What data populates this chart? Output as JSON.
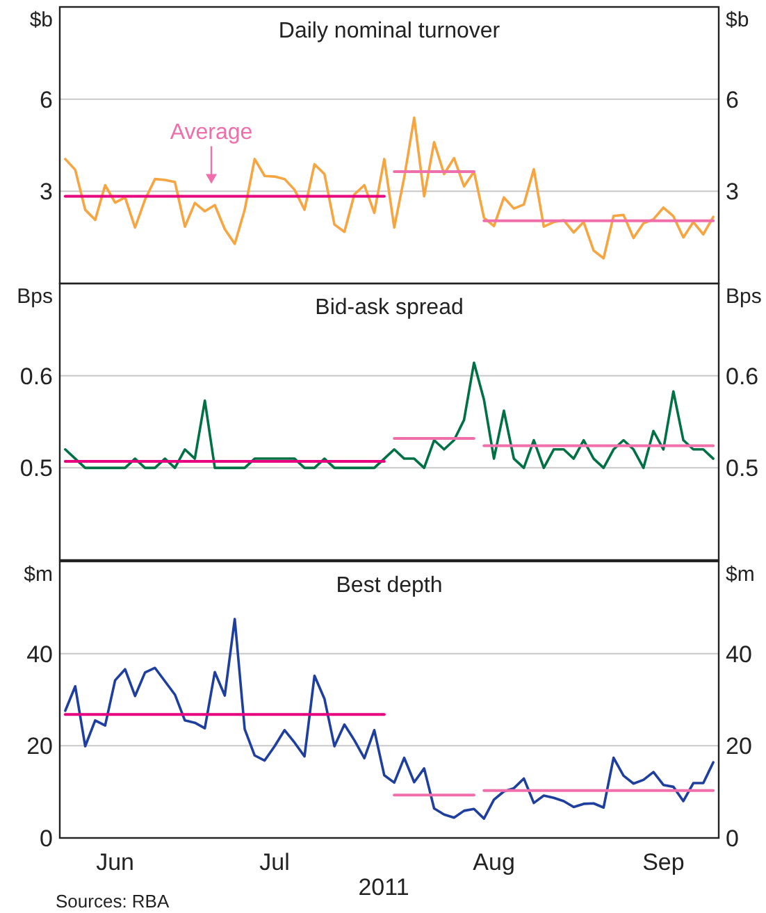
{
  "chart_data": [
    {
      "type": "line",
      "title": "Daily nominal turnover",
      "ylabel": "$b",
      "y2label": "$b",
      "categories": [
        null,
        null,
        null,
        null,
        null,
        null,
        null,
        null,
        null,
        null,
        null,
        null,
        null,
        null,
        null,
        null,
        null,
        null,
        null,
        null,
        null,
        null,
        null,
        null,
        null,
        null,
        null,
        null,
        null,
        null,
        null,
        null,
        null,
        null,
        null,
        null,
        null,
        null,
        null,
        null,
        null,
        null,
        null,
        null,
        null,
        null,
        null,
        null,
        null,
        null,
        null,
        null,
        null,
        null,
        null,
        null,
        null,
        null,
        null,
        null,
        null,
        null,
        null,
        null,
        null,
        null
      ],
      "ylim": [
        0,
        9
      ],
      "yticks": [
        3,
        6
      ],
      "y2lim": [
        0,
        9
      ],
      "y2ticks": [
        3,
        6
      ],
      "grid": "y",
      "tick_labels": "y",
      "series": [
        {
          "color": "#f7a540",
          "values": [
            4.05,
            3.7,
            2.4,
            2.07,
            3.2,
            2.63,
            2.8,
            1.82,
            2.73,
            3.4,
            3.37,
            3.3,
            1.85,
            2.62,
            2.35,
            2.55,
            1.77,
            1.29,
            2.4,
            4.05,
            3.5,
            3.48,
            3.4,
            3.05,
            2.4,
            3.88,
            3.56,
            1.92,
            1.68,
            2.9,
            3.2,
            2.3,
            4.05,
            1.82,
            3.45,
            5.4,
            2.84,
            4.6,
            3.56,
            4.08,
            3.16,
            3.64,
            2.14,
            1.87,
            2.8,
            2.44,
            2.57,
            3.72,
            1.85,
            2.0,
            2.06,
            1.66,
            2.0,
            1.07,
            0.82,
            2.2,
            2.23,
            1.48,
            1.96,
            2.09,
            2.47,
            2.19,
            1.5,
            2.0,
            1.6,
            2.17
          ]
        },
        {
          "type": "line",
          "color": "#e6007e",
          "values": [
            2.84,
            2.84,
            2.84,
            2.84,
            2.84,
            2.84,
            2.84,
            2.84,
            2.84,
            2.84,
            2.84,
            2.84,
            2.84,
            2.84,
            2.84,
            2.84,
            2.84,
            2.84,
            2.84,
            2.84,
            2.84,
            2.84,
            2.84,
            2.84,
            2.84,
            2.84,
            2.84,
            2.84,
            2.84,
            2.84,
            2.84,
            2.84,
            2.84,
            null,
            null,
            null,
            null,
            null,
            null,
            null,
            null,
            null,
            null,
            null,
            null,
            null,
            null,
            null,
            null,
            null,
            null,
            null,
            null,
            null,
            null,
            null,
            null,
            null,
            null,
            null,
            null,
            null,
            null,
            null,
            null,
            null
          ]
        },
        {
          "type": "line",
          "color": "#f06eaa",
          "values": [
            null,
            null,
            null,
            null,
            null,
            null,
            null,
            null,
            null,
            null,
            null,
            null,
            null,
            null,
            null,
            null,
            null,
            null,
            null,
            null,
            null,
            null,
            null,
            null,
            null,
            null,
            null,
            null,
            null,
            null,
            null,
            null,
            null,
            3.64,
            3.64,
            3.64,
            3.64,
            3.64,
            3.64,
            3.64,
            3.64,
            3.64,
            null,
            null,
            null,
            null,
            null,
            null,
            null,
            null,
            null,
            null,
            null,
            null,
            null,
            null,
            null,
            null,
            null,
            null,
            null,
            null,
            null,
            null,
            null,
            null
          ]
        },
        {
          "type": "line",
          "color": "#f06eaa",
          "values": [
            null,
            null,
            null,
            null,
            null,
            null,
            null,
            null,
            null,
            null,
            null,
            null,
            null,
            null,
            null,
            null,
            null,
            null,
            null,
            null,
            null,
            null,
            null,
            null,
            null,
            null,
            null,
            null,
            null,
            null,
            null,
            null,
            null,
            null,
            null,
            null,
            null,
            null,
            null,
            null,
            null,
            null,
            2.04,
            2.04,
            2.04,
            2.04,
            2.04,
            2.04,
            2.04,
            2.04,
            2.04,
            2.04,
            2.04,
            2.04,
            2.04,
            2.04,
            2.04,
            2.04,
            2.04,
            2.04,
            2.04,
            2.04,
            2.04,
            2.04,
            2.04,
            2.04
          ]
        }
      ],
      "annotations": [
        {
          "text": "Average",
          "y": 2.84
        }
      ]
    },
    {
      "type": "line",
      "title": "Bid-ask spread",
      "ylabel": "Bps",
      "y2label": "Bps",
      "categories": [
        null,
        null,
        null,
        null,
        null,
        null,
        null,
        null,
        null,
        null,
        null,
        null,
        null,
        null,
        null,
        null,
        null,
        null,
        null,
        null,
        null,
        null,
        null,
        null,
        null,
        null,
        null,
        null,
        null,
        null,
        null,
        null,
        null,
        null,
        null,
        null,
        null,
        null,
        null,
        null,
        null,
        null,
        null,
        null,
        null,
        null,
        null,
        null,
        null,
        null,
        null,
        null,
        null,
        null,
        null,
        null,
        null,
        null,
        null,
        null,
        null,
        null,
        null,
        null,
        null,
        null
      ],
      "ylim": [
        0.4,
        0.7
      ],
      "yticks": [
        0.5,
        0.6
      ],
      "y2lim": [
        0.4,
        0.7
      ],
      "y2ticks": [
        0.5,
        0.6
      ],
      "grid": "y",
      "tick_labels": "y",
      "series": [
        {
          "color": "#007045",
          "values": [
            0.52,
            0.51,
            0.5,
            0.5,
            0.5,
            0.5,
            0.5,
            0.51,
            0.5,
            0.5,
            0.51,
            0.5,
            0.52,
            0.51,
            0.573,
            0.5,
            0.5,
            0.5,
            0.5,
            0.51,
            0.51,
            0.51,
            0.51,
            0.51,
            0.5,
            0.5,
            0.51,
            0.5,
            0.5,
            0.5,
            0.5,
            0.5,
            0.51,
            0.52,
            0.51,
            0.51,
            0.5,
            0.53,
            0.52,
            0.53,
            0.552,
            0.614,
            0.574,
            0.51,
            0.562,
            0.51,
            0.5,
            0.53,
            0.5,
            0.52,
            0.52,
            0.51,
            0.53,
            0.51,
            0.5,
            0.52,
            0.53,
            0.52,
            0.5,
            0.54,
            0.52,
            0.583,
            0.53,
            0.52,
            0.52,
            0.51
          ]
        },
        {
          "type": "line",
          "color": "#e6007e",
          "values": [
            0.507,
            0.507,
            0.507,
            0.507,
            0.507,
            0.507,
            0.507,
            0.507,
            0.507,
            0.507,
            0.507,
            0.507,
            0.507,
            0.507,
            0.507,
            0.507,
            0.507,
            0.507,
            0.507,
            0.507,
            0.507,
            0.507,
            0.507,
            0.507,
            0.507,
            0.507,
            0.507,
            0.507,
            0.507,
            0.507,
            0.507,
            0.507,
            0.507,
            null,
            null,
            null,
            null,
            null,
            null,
            null,
            null,
            null,
            null,
            null,
            null,
            null,
            null,
            null,
            null,
            null,
            null,
            null,
            null,
            null,
            null,
            null,
            null,
            null,
            null,
            null,
            null,
            null,
            null,
            null,
            null,
            null
          ]
        },
        {
          "type": "line",
          "color": "#f06eaa",
          "values": [
            null,
            null,
            null,
            null,
            null,
            null,
            null,
            null,
            null,
            null,
            null,
            null,
            null,
            null,
            null,
            null,
            null,
            null,
            null,
            null,
            null,
            null,
            null,
            null,
            null,
            null,
            null,
            null,
            null,
            null,
            null,
            null,
            null,
            0.532,
            0.532,
            0.532,
            0.532,
            0.532,
            0.532,
            0.532,
            0.532,
            0.532,
            null,
            null,
            null,
            null,
            null,
            null,
            null,
            null,
            null,
            null,
            null,
            null,
            null,
            null,
            null,
            null,
            null,
            null,
            null,
            null,
            null,
            null,
            null,
            null
          ]
        },
        {
          "type": "line",
          "color": "#f06eaa",
          "values": [
            null,
            null,
            null,
            null,
            null,
            null,
            null,
            null,
            null,
            null,
            null,
            null,
            null,
            null,
            null,
            null,
            null,
            null,
            null,
            null,
            null,
            null,
            null,
            null,
            null,
            null,
            null,
            null,
            null,
            null,
            null,
            null,
            null,
            null,
            null,
            null,
            null,
            null,
            null,
            null,
            null,
            null,
            0.524,
            0.524,
            0.524,
            0.524,
            0.524,
            0.524,
            0.524,
            0.524,
            0.524,
            0.524,
            0.524,
            0.524,
            0.524,
            0.524,
            0.524,
            0.524,
            0.524,
            0.524,
            0.524,
            0.524,
            0.524,
            0.524,
            0.524,
            0.524
          ]
        }
      ]
    },
    {
      "type": "line",
      "title": "Best depth",
      "ylabel": "$m",
      "y2label": "$m",
      "xlabel": "2011",
      "categories": [
        null,
        null,
        null,
        null,
        null,
        "Jun",
        null,
        null,
        null,
        null,
        null,
        null,
        null,
        null,
        null,
        null,
        null,
        null,
        null,
        null,
        null,
        "Jul",
        null,
        null,
        null,
        null,
        null,
        null,
        null,
        null,
        null,
        null,
        null,
        null,
        null,
        null,
        null,
        null,
        null,
        null,
        null,
        null,
        null,
        "Aug",
        null,
        null,
        null,
        null,
        null,
        null,
        null,
        null,
        null,
        null,
        null,
        null,
        null,
        null,
        null,
        null,
        "Sep",
        null,
        null,
        null,
        null,
        null
      ],
      "ylim": [
        0,
        60
      ],
      "yticks": [
        0,
        20,
        40
      ],
      "y2lim": [
        0,
        60
      ],
      "y2ticks": [
        0,
        20,
        40
      ],
      "grid": "y",
      "series": [
        {
          "color": "#1f3f9f",
          "values": [
            27.6,
            32.9,
            19.9,
            25.5,
            24.4,
            34.2,
            36.6,
            30.8,
            35.9,
            36.9,
            34.0,
            31.1,
            25.5,
            25.0,
            23.8,
            36.0,
            30.9,
            47.5,
            23.6,
            17.9,
            16.8,
            19.9,
            23.4,
            20.7,
            17.7,
            35.2,
            30.2,
            19.9,
            24.6,
            21.2,
            17.3,
            23.4,
            13.6,
            12.0,
            17.4,
            12.1,
            15.1,
            6.4,
            5.1,
            4.4,
            5.9,
            6.3,
            4.2,
            8.3,
            10.1,
            10.8,
            12.9,
            7.6,
            9.2,
            8.7,
            8.0,
            6.7,
            7.4,
            7.5,
            6.6,
            17.4,
            13.5,
            11.8,
            12.6,
            14.3,
            11.5,
            11.1,
            8.0,
            11.9,
            11.9,
            16.4
          ]
        },
        {
          "type": "line",
          "color": "#e6007e",
          "values": [
            26.8,
            26.8,
            26.8,
            26.8,
            26.8,
            26.8,
            26.8,
            26.8,
            26.8,
            26.8,
            26.8,
            26.8,
            26.8,
            26.8,
            26.8,
            26.8,
            26.8,
            26.8,
            26.8,
            26.8,
            26.8,
            26.8,
            26.8,
            26.8,
            26.8,
            26.8,
            26.8,
            26.8,
            26.8,
            26.8,
            26.8,
            26.8,
            26.8,
            null,
            null,
            null,
            null,
            null,
            null,
            null,
            null,
            null,
            null,
            null,
            null,
            null,
            null,
            null,
            null,
            null,
            null,
            null,
            null,
            null,
            null,
            null,
            null,
            null,
            null,
            null,
            null,
            null,
            null,
            null,
            null,
            null
          ]
        },
        {
          "type": "line",
          "color": "#f06eaa",
          "values": [
            null,
            null,
            null,
            null,
            null,
            null,
            null,
            null,
            null,
            null,
            null,
            null,
            null,
            null,
            null,
            null,
            null,
            null,
            null,
            null,
            null,
            null,
            null,
            null,
            null,
            null,
            null,
            null,
            null,
            null,
            null,
            null,
            null,
            9.3,
            9.3,
            9.3,
            9.3,
            9.3,
            9.3,
            9.3,
            9.3,
            9.3,
            null,
            null,
            null,
            null,
            null,
            null,
            null,
            null,
            null,
            null,
            null,
            null,
            null,
            null,
            null,
            null,
            null,
            null,
            null,
            null,
            null,
            null,
            null,
            null
          ]
        },
        {
          "type": "line",
          "color": "#f06eaa",
          "values": [
            null,
            null,
            null,
            null,
            null,
            null,
            null,
            null,
            null,
            null,
            null,
            null,
            null,
            null,
            null,
            null,
            null,
            null,
            null,
            null,
            null,
            null,
            null,
            null,
            null,
            null,
            null,
            null,
            null,
            null,
            null,
            null,
            null,
            null,
            null,
            null,
            null,
            null,
            null,
            null,
            null,
            null,
            10.3,
            10.3,
            10.3,
            10.3,
            10.3,
            10.3,
            10.3,
            10.3,
            10.3,
            10.3,
            10.3,
            10.3,
            10.3,
            10.3,
            10.3,
            10.3,
            10.3,
            10.3,
            10.3,
            10.3,
            10.3,
            10.3,
            10.3,
            10.3
          ]
        }
      ],
      "annotations": [
        "Sources: RBA"
      ]
    }
  ]
}
